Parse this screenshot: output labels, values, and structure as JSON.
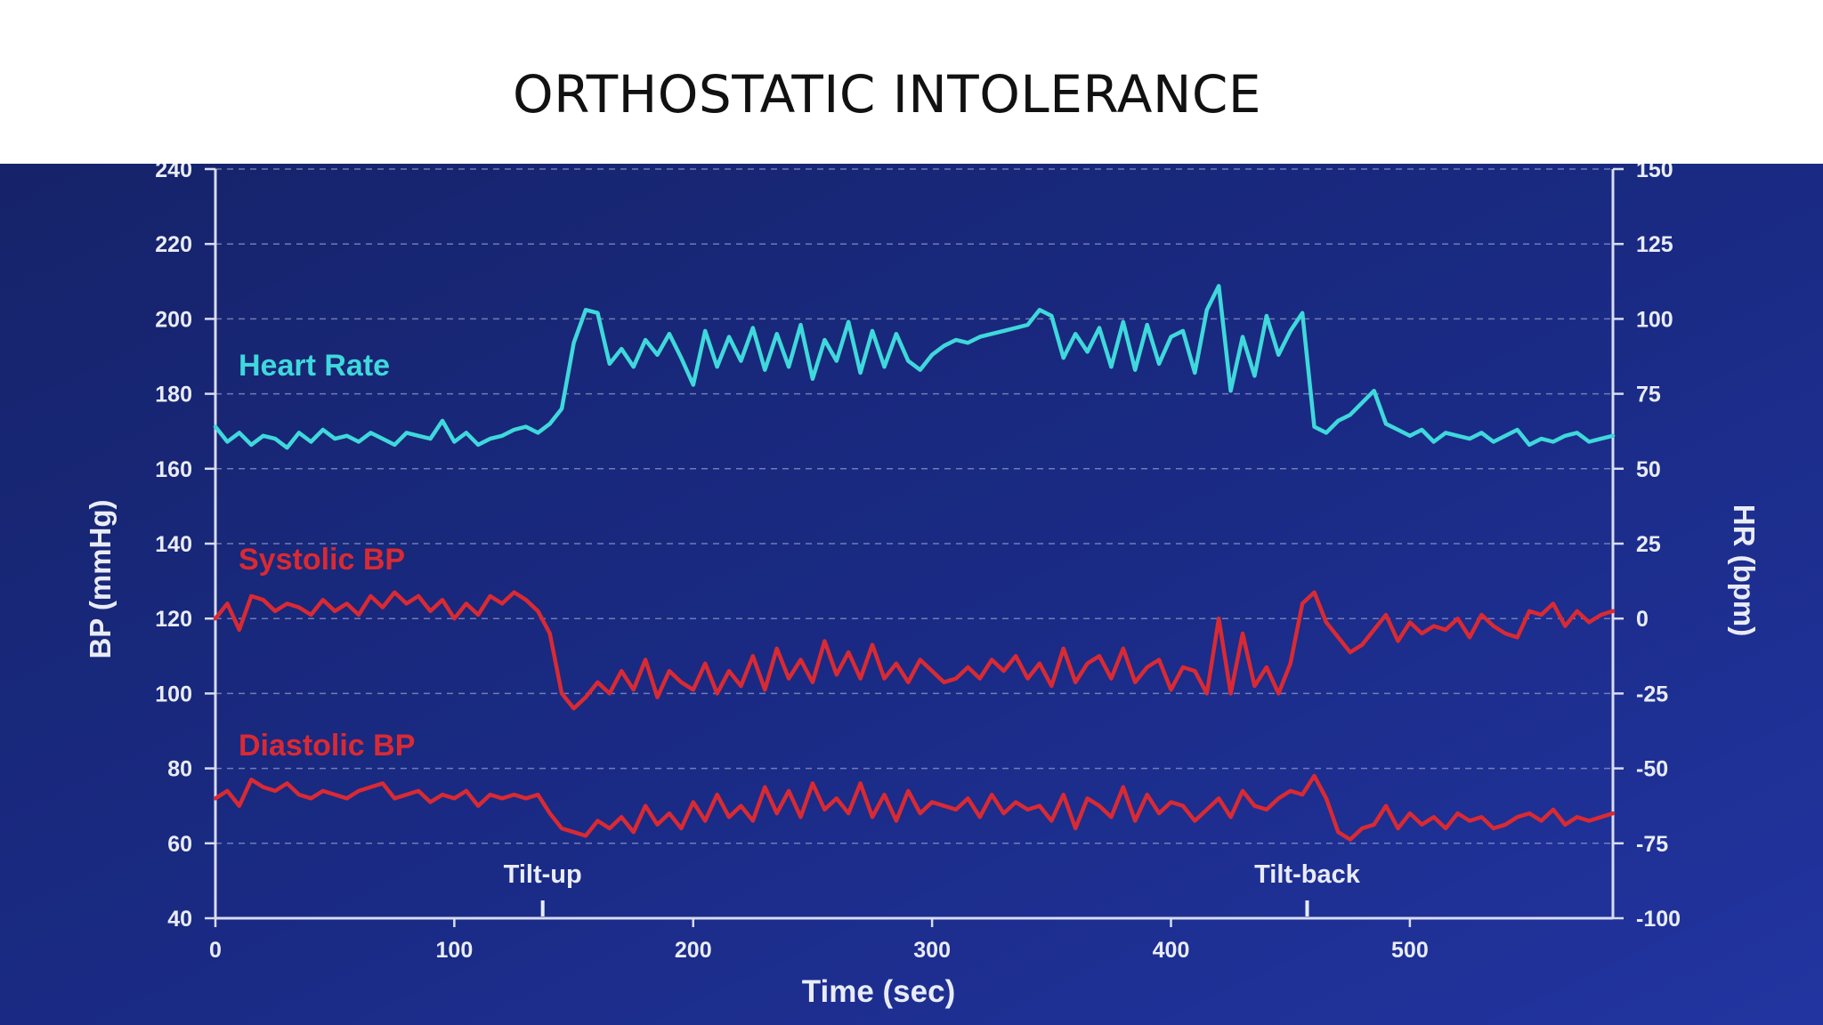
{
  "slide": {
    "title": "ORTHOSTATIC INTOLERANCE"
  },
  "colors": {
    "background_top": "#17276e",
    "background_bottom": "#1a2a8a",
    "heart_rate": "#3fd8dc",
    "bp": "#d92a33",
    "axis": "#d8dcef",
    "grid": "#8f97c8",
    "text": "#e9ecf7"
  },
  "chart_data": {
    "type": "line",
    "xlabel": "Time (sec)",
    "ylabel": "BP (mmHg)",
    "y2label": "HR (bpm)",
    "xlim": [
      0,
      585
    ],
    "ylim": [
      40,
      240
    ],
    "y2lim": [
      -100,
      150
    ],
    "xticks": [
      0,
      100,
      200,
      300,
      400,
      500
    ],
    "yticks": [
      40,
      60,
      80,
      100,
      120,
      140,
      160,
      180,
      200,
      220,
      240
    ],
    "y2ticks": [
      -100,
      -75,
      -50,
      -25,
      0,
      25,
      50,
      75,
      100,
      125,
      150
    ],
    "grid": "horizontal dashed",
    "annotations": [
      {
        "text": "Tilt-up",
        "x": 137
      },
      {
        "text": "Tilt-back",
        "x": 457
      }
    ],
    "series": [
      {
        "name": "Heart Rate",
        "axis": "right",
        "x": [
          0,
          5,
          10,
          15,
          20,
          25,
          30,
          35,
          40,
          45,
          50,
          55,
          60,
          65,
          70,
          75,
          80,
          85,
          90,
          95,
          100,
          105,
          110,
          115,
          120,
          125,
          130,
          135,
          140,
          145,
          150,
          155,
          160,
          165,
          170,
          175,
          180,
          185,
          190,
          195,
          200,
          205,
          210,
          215,
          220,
          225,
          230,
          235,
          240,
          245,
          250,
          255,
          260,
          265,
          270,
          275,
          280,
          285,
          290,
          295,
          300,
          305,
          310,
          315,
          320,
          325,
          330,
          335,
          340,
          345,
          350,
          355,
          360,
          365,
          370,
          375,
          380,
          385,
          390,
          395,
          400,
          405,
          410,
          415,
          420,
          425,
          430,
          435,
          440,
          445,
          450,
          455,
          460,
          465,
          470,
          475,
          480,
          485,
          490,
          495,
          500,
          505,
          510,
          515,
          520,
          525,
          530,
          535,
          540,
          545,
          550,
          555,
          560,
          565,
          570,
          575,
          580,
          585
        ],
        "values": [
          64,
          59,
          62,
          58,
          61,
          60,
          57,
          62,
          59,
          63,
          60,
          61,
          59,
          62,
          60,
          58,
          62,
          61,
          60,
          66,
          59,
          62,
          58,
          60,
          61,
          63,
          64,
          62,
          65,
          70,
          92,
          103,
          102,
          85,
          90,
          84,
          93,
          88,
          95,
          87,
          78,
          96,
          84,
          94,
          86,
          97,
          83,
          95,
          84,
          98,
          80,
          93,
          86,
          99,
          82,
          96,
          84,
          95,
          86,
          83,
          88,
          91,
          93,
          92,
          94,
          95,
          96,
          97,
          98,
          103,
          101,
          87,
          95,
          89,
          97,
          84,
          99,
          83,
          98,
          85,
          94,
          96,
          82,
          103,
          111,
          76,
          94,
          81,
          101,
          88,
          96,
          102,
          64,
          62,
          66,
          68,
          72,
          76,
          65,
          63,
          61,
          63,
          59,
          62,
          61,
          60,
          62,
          59,
          61,
          63,
          58,
          60,
          59,
          61,
          62,
          59,
          60,
          61
        ]
      },
      {
        "name": "Systolic BP",
        "axis": "left",
        "x": [
          0,
          5,
          10,
          15,
          20,
          25,
          30,
          35,
          40,
          45,
          50,
          55,
          60,
          65,
          70,
          75,
          80,
          85,
          90,
          95,
          100,
          105,
          110,
          115,
          120,
          125,
          130,
          135,
          140,
          145,
          150,
          155,
          160,
          165,
          170,
          175,
          180,
          185,
          190,
          195,
          200,
          205,
          210,
          215,
          220,
          225,
          230,
          235,
          240,
          245,
          250,
          255,
          260,
          265,
          270,
          275,
          280,
          285,
          290,
          295,
          300,
          305,
          310,
          315,
          320,
          325,
          330,
          335,
          340,
          345,
          350,
          355,
          360,
          365,
          370,
          375,
          380,
          385,
          390,
          395,
          400,
          405,
          410,
          415,
          420,
          425,
          430,
          435,
          440,
          445,
          450,
          455,
          460,
          465,
          470,
          475,
          480,
          485,
          490,
          495,
          500,
          505,
          510,
          515,
          520,
          525,
          530,
          535,
          540,
          545,
          550,
          555,
          560,
          565,
          570,
          575,
          580,
          585
        ],
        "values": [
          120,
          124,
          117,
          126,
          125,
          122,
          124,
          123,
          121,
          125,
          122,
          124,
          121,
          126,
          123,
          127,
          124,
          126,
          122,
          125,
          120,
          124,
          121,
          126,
          124,
          127,
          125,
          122,
          116,
          100,
          96,
          99,
          103,
          100,
          106,
          101,
          109,
          99,
          106,
          103,
          101,
          108,
          100,
          106,
          102,
          110,
          101,
          112,
          104,
          109,
          103,
          114,
          105,
          111,
          104,
          113,
          104,
          108,
          103,
          109,
          106,
          103,
          104,
          107,
          104,
          109,
          106,
          110,
          104,
          108,
          102,
          112,
          103,
          108,
          110,
          104,
          112,
          103,
          107,
          109,
          101,
          107,
          106,
          100,
          120,
          100,
          116,
          102,
          107,
          100,
          108,
          124,
          127,
          119,
          115,
          111,
          113,
          117,
          121,
          114,
          119,
          116,
          118,
          117,
          120,
          115,
          121,
          118,
          116,
          115,
          122,
          121,
          124,
          118,
          122,
          119,
          121,
          122
        ]
      },
      {
        "name": "Diastolic BP",
        "axis": "left",
        "x": [
          0,
          5,
          10,
          15,
          20,
          25,
          30,
          35,
          40,
          45,
          50,
          55,
          60,
          65,
          70,
          75,
          80,
          85,
          90,
          95,
          100,
          105,
          110,
          115,
          120,
          125,
          130,
          135,
          140,
          145,
          150,
          155,
          160,
          165,
          170,
          175,
          180,
          185,
          190,
          195,
          200,
          205,
          210,
          215,
          220,
          225,
          230,
          235,
          240,
          245,
          250,
          255,
          260,
          265,
          270,
          275,
          280,
          285,
          290,
          295,
          300,
          305,
          310,
          315,
          320,
          325,
          330,
          335,
          340,
          345,
          350,
          355,
          360,
          365,
          370,
          375,
          380,
          385,
          390,
          395,
          400,
          405,
          410,
          415,
          420,
          425,
          430,
          435,
          440,
          445,
          450,
          455,
          460,
          465,
          470,
          475,
          480,
          485,
          490,
          495,
          500,
          505,
          510,
          515,
          520,
          525,
          530,
          535,
          540,
          545,
          550,
          555,
          560,
          565,
          570,
          575,
          580,
          585
        ],
        "values": [
          72,
          74,
          70,
          77,
          75,
          74,
          76,
          73,
          72,
          74,
          73,
          72,
          74,
          75,
          76,
          72,
          73,
          74,
          71,
          73,
          72,
          74,
          70,
          73,
          72,
          73,
          72,
          73,
          68,
          64,
          63,
          62,
          66,
          64,
          67,
          63,
          70,
          65,
          68,
          64,
          71,
          66,
          73,
          67,
          70,
          66,
          75,
          68,
          74,
          67,
          76,
          69,
          72,
          68,
          76,
          67,
          73,
          66,
          74,
          68,
          71,
          70,
          69,
          72,
          67,
          73,
          68,
          71,
          69,
          70,
          66,
          73,
          64,
          72,
          70,
          67,
          75,
          66,
          73,
          68,
          71,
          70,
          66,
          69,
          72,
          67,
          74,
          70,
          69,
          72,
          74,
          73,
          78,
          72,
          63,
          61,
          64,
          65,
          70,
          64,
          68,
          65,
          67,
          64,
          68,
          66,
          67,
          64,
          65,
          67,
          68,
          66,
          69,
          65,
          67,
          66,
          67,
          68
        ]
      }
    ]
  }
}
